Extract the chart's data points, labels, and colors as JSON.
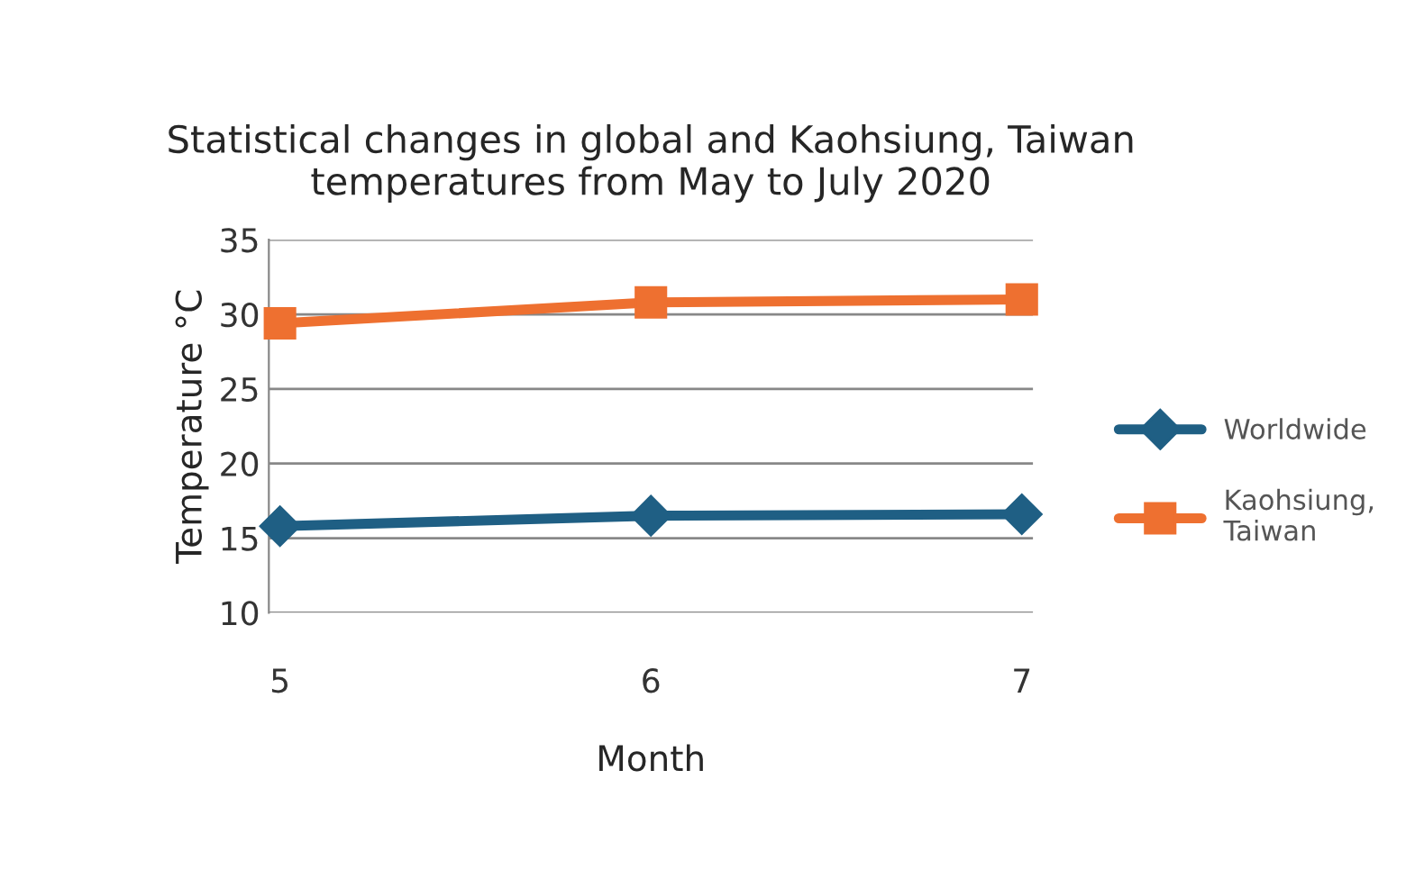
{
  "chart_data": {
    "type": "line",
    "title": "Statistical changes in global and Kaohsiung, Taiwan\ntemperatures from May to July 2020",
    "xlabel": "Month",
    "ylabel": "Temperature °C",
    "categories": [
      "5",
      "6",
      "7"
    ],
    "series": [
      {
        "name": "Worldwide",
        "color": "#1f5f84",
        "values": [
          15.8,
          16.5,
          16.6
        ],
        "marker": "diamond"
      },
      {
        "name": "Kaohsiung,\nTaiwan",
        "color": "#ee7030",
        "values": [
          29.4,
          30.8,
          31.0
        ],
        "marker": "square"
      }
    ],
    "ylim": [
      10,
      35
    ],
    "yticks": [
      10,
      15,
      20,
      25,
      30,
      35
    ],
    "grid": "y",
    "legend": "right"
  }
}
